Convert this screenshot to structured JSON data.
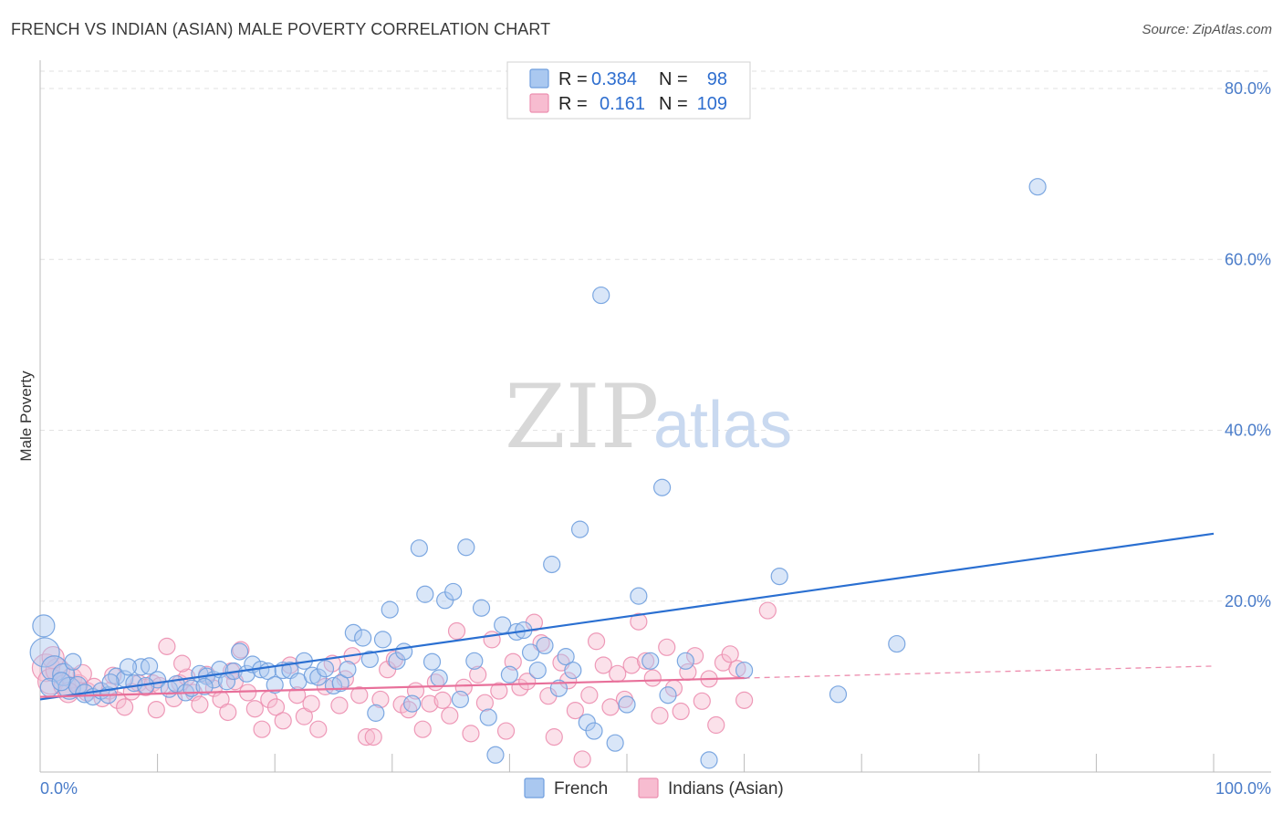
{
  "title": "FRENCH VS INDIAN (ASIAN) MALE POVERTY CORRELATION CHART",
  "source": "Source: ZipAtlas.com",
  "watermark": {
    "part1": "ZIP",
    "part2": "atlas"
  },
  "legend": {
    "rows": [
      {
        "r_label": "R =",
        "r_value": "0.384",
        "n_label": "N =",
        "n_value": "98"
      },
      {
        "r_label": "R =",
        "r_value": "0.161",
        "n_label": "N =",
        "n_value": "109"
      }
    ]
  },
  "bottom_legend": {
    "french": "French",
    "indians": "Indians (Asian)"
  },
  "colors": {
    "french_fill": "#aac8f0",
    "french_stroke": "#6f9ede",
    "french_line": "#2a6fd1",
    "indian_fill": "#f7bcd0",
    "indian_stroke": "#ec8fb0",
    "indian_line": "#e8709a"
  },
  "chart_data": {
    "type": "scatter",
    "title": "FRENCH VS INDIAN (ASIAN) MALE POVERTY CORRELATION CHART",
    "xlabel": "",
    "ylabel": "Male Poverty",
    "xlim": [
      0,
      100
    ],
    "ylim": [
      0,
      85
    ],
    "x_tick_labels": [
      "0.0%",
      "100.0%"
    ],
    "y_ticks": [
      20,
      40,
      60,
      80
    ],
    "y_tick_labels": [
      "20.0%",
      "40.0%",
      "60.0%",
      "80.0%"
    ],
    "grid": "horizontal dashed",
    "legend_position": "top-center",
    "series": [
      {
        "name": "French",
        "r": 0.384,
        "n": 98,
        "trend": {
          "x": [
            0,
            100
          ],
          "y": [
            8.5,
            27.9
          ]
        },
        "points": [
          [
            0.3,
            17.1,
            12
          ],
          [
            0.4,
            14.0,
            16
          ],
          [
            1.2,
            12.1,
            14
          ],
          [
            2.0,
            11.4,
            12
          ],
          [
            2.5,
            9.8,
            12
          ],
          [
            3.2,
            10.1,
            10
          ],
          [
            3.8,
            9.2,
            10
          ],
          [
            4.5,
            8.8,
            9
          ],
          [
            5.2,
            9.5,
            9
          ],
          [
            5.8,
            9.0,
            9
          ],
          [
            6.5,
            11.2,
            9
          ],
          [
            7.2,
            10.9,
            9
          ],
          [
            8.0,
            10.4,
            9
          ],
          [
            8.6,
            12.3,
            9
          ],
          [
            9.3,
            12.4,
            9
          ],
          [
            10.0,
            10.8,
            9
          ],
          [
            11.0,
            9.7,
            9
          ],
          [
            11.6,
            10.3,
            9
          ],
          [
            12.4,
            9.3,
            9
          ],
          [
            12.9,
            9.8,
            9
          ],
          [
            13.6,
            11.5,
            9
          ],
          [
            14.2,
            11.2,
            9
          ],
          [
            14.8,
            10.8,
            9
          ],
          [
            15.3,
            12.0,
            9
          ],
          [
            15.9,
            10.6,
            9
          ],
          [
            16.5,
            11.8,
            9
          ],
          [
            17.0,
            14.1,
            9
          ],
          [
            17.6,
            11.5,
            9
          ],
          [
            18.1,
            12.6,
            9
          ],
          [
            18.8,
            12.0,
            9
          ],
          [
            19.4,
            11.8,
            9
          ],
          [
            20.0,
            10.2,
            9
          ],
          [
            20.7,
            11.9,
            9
          ],
          [
            21.3,
            11.9,
            9
          ],
          [
            22.0,
            10.6,
            9
          ],
          [
            22.5,
            13.0,
            9
          ],
          [
            23.2,
            11.3,
            9
          ],
          [
            23.7,
            11.1,
            9
          ],
          [
            24.3,
            12.1,
            9
          ],
          [
            25.0,
            10.1,
            9
          ],
          [
            25.6,
            10.4,
            9
          ],
          [
            26.2,
            12.0,
            9
          ],
          [
            26.7,
            16.3,
            9
          ],
          [
            27.5,
            15.7,
            9
          ],
          [
            28.1,
            13.2,
            9
          ],
          [
            28.6,
            6.9,
            9
          ],
          [
            29.2,
            15.5,
            9
          ],
          [
            29.8,
            19.0,
            9
          ],
          [
            30.4,
            13.0,
            9
          ],
          [
            31.0,
            14.1,
            9
          ],
          [
            31.7,
            8.0,
            9
          ],
          [
            32.3,
            26.2,
            9
          ],
          [
            32.8,
            20.8,
            9
          ],
          [
            33.4,
            12.9,
            9
          ],
          [
            34.0,
            11.0,
            9
          ],
          [
            34.5,
            20.1,
            9
          ],
          [
            35.2,
            21.1,
            9
          ],
          [
            35.8,
            8.5,
            9
          ],
          [
            36.3,
            26.3,
            9
          ],
          [
            37.0,
            13.0,
            9
          ],
          [
            37.6,
            19.2,
            9
          ],
          [
            38.2,
            6.4,
            9
          ],
          [
            38.8,
            2.0,
            9
          ],
          [
            39.4,
            17.2,
            9
          ],
          [
            40.0,
            11.4,
            9
          ],
          [
            40.6,
            16.4,
            9
          ],
          [
            41.2,
            16.6,
            9
          ],
          [
            41.8,
            14.0,
            9
          ],
          [
            42.4,
            11.9,
            9
          ],
          [
            43.0,
            14.8,
            9
          ],
          [
            43.6,
            24.3,
            9
          ],
          [
            44.2,
            9.8,
            9
          ],
          [
            44.8,
            13.5,
            9
          ],
          [
            45.4,
            11.9,
            9
          ],
          [
            46.0,
            28.4,
            9
          ],
          [
            46.6,
            5.8,
            9
          ],
          [
            47.2,
            4.8,
            9
          ],
          [
            47.8,
            55.8,
            9
          ],
          [
            49.0,
            3.4,
            9
          ],
          [
            50.0,
            7.9,
            9
          ],
          [
            51.0,
            20.6,
            9
          ],
          [
            52.0,
            13.0,
            9
          ],
          [
            53.0,
            33.3,
            9
          ],
          [
            53.5,
            9.0,
            9
          ],
          [
            55.0,
            13.0,
            9
          ],
          [
            57.0,
            1.4,
            9
          ],
          [
            60.0,
            11.9,
            9
          ],
          [
            63.0,
            22.9,
            9
          ],
          [
            68.0,
            9.1,
            9
          ],
          [
            73.0,
            15.0,
            9
          ],
          [
            85.0,
            68.5,
            9
          ],
          [
            0.8,
            9.9,
            10
          ],
          [
            1.8,
            10.6,
            10
          ],
          [
            2.8,
            12.9,
            9
          ],
          [
            6.0,
            10.5,
            9
          ],
          [
            7.5,
            12.3,
            9
          ],
          [
            9.0,
            10.1,
            9
          ],
          [
            14.0,
            10.0,
            9
          ]
        ]
      },
      {
        "name": "Indians (Asian)",
        "r": 0.161,
        "n": 109,
        "trend": {
          "x": [
            0,
            60
          ],
          "y": [
            8.8,
            11.0
          ]
        },
        "trend_dashed": {
          "x": [
            60,
            100
          ],
          "y": [
            11.0,
            12.4
          ]
        },
        "points": [
          [
            0.5,
            12.2,
            15
          ],
          [
            0.9,
            10.6,
            14
          ],
          [
            1.5,
            11.9,
            13
          ],
          [
            2.1,
            10.1,
            12
          ],
          [
            2.7,
            11.0,
            11
          ],
          [
            3.3,
            10.3,
            10
          ],
          [
            4.0,
            9.4,
            10
          ],
          [
            4.6,
            10.0,
            9
          ],
          [
            5.3,
            8.6,
            9
          ],
          [
            5.9,
            9.5,
            9
          ],
          [
            6.6,
            8.4,
            9
          ],
          [
            7.2,
            7.6,
            9
          ],
          [
            7.8,
            9.4,
            9
          ],
          [
            8.4,
            10.4,
            9
          ],
          [
            9.0,
            9.9,
            9
          ],
          [
            9.6,
            10.4,
            9
          ],
          [
            10.2,
            10.1,
            9
          ],
          [
            10.8,
            14.7,
            9
          ],
          [
            11.4,
            8.6,
            9
          ],
          [
            11.9,
            10.4,
            9
          ],
          [
            12.5,
            11.1,
            9
          ],
          [
            13.1,
            9.3,
            9
          ],
          [
            13.6,
            7.9,
            9
          ],
          [
            14.2,
            11.4,
            9
          ],
          [
            14.8,
            9.8,
            9
          ],
          [
            15.4,
            8.5,
            9
          ],
          [
            16.0,
            7.0,
            9
          ],
          [
            16.6,
            10.6,
            9
          ],
          [
            17.1,
            14.3,
            9
          ],
          [
            17.7,
            9.3,
            9
          ],
          [
            18.3,
            7.4,
            9
          ],
          [
            18.9,
            5.0,
            9
          ],
          [
            19.5,
            8.5,
            9
          ],
          [
            20.1,
            7.6,
            9
          ],
          [
            20.7,
            6.0,
            9
          ],
          [
            21.3,
            12.5,
            9
          ],
          [
            21.9,
            9.0,
            9
          ],
          [
            22.5,
            6.5,
            9
          ],
          [
            23.1,
            8.0,
            9
          ],
          [
            23.7,
            5.0,
            9
          ],
          [
            24.3,
            10.0,
            9
          ],
          [
            24.9,
            12.7,
            9
          ],
          [
            25.5,
            7.8,
            9
          ],
          [
            26.0,
            10.9,
            9
          ],
          [
            26.6,
            13.6,
            9
          ],
          [
            27.2,
            9.0,
            9
          ],
          [
            27.8,
            4.1,
            9
          ],
          [
            28.4,
            4.1,
            9
          ],
          [
            29.0,
            8.5,
            9
          ],
          [
            29.6,
            12.0,
            9
          ],
          [
            30.2,
            13.2,
            9
          ],
          [
            30.8,
            7.9,
            9
          ],
          [
            31.4,
            7.3,
            9
          ],
          [
            32.0,
            9.5,
            9
          ],
          [
            32.6,
            5.0,
            9
          ],
          [
            33.2,
            8.0,
            9
          ],
          [
            33.7,
            10.5,
            9
          ],
          [
            34.3,
            8.4,
            9
          ],
          [
            34.9,
            6.6,
            9
          ],
          [
            35.5,
            16.5,
            9
          ],
          [
            36.1,
            9.9,
            9
          ],
          [
            36.7,
            4.5,
            9
          ],
          [
            37.3,
            11.4,
            9
          ],
          [
            37.9,
            8.1,
            9
          ],
          [
            38.5,
            15.5,
            9
          ],
          [
            39.1,
            9.5,
            9
          ],
          [
            39.7,
            4.8,
            9
          ],
          [
            40.3,
            12.9,
            9
          ],
          [
            40.9,
            9.9,
            9
          ],
          [
            41.5,
            10.6,
            9
          ],
          [
            42.1,
            17.5,
            9
          ],
          [
            42.7,
            15.1,
            9
          ],
          [
            43.3,
            8.9,
            9
          ],
          [
            43.8,
            4.1,
            9
          ],
          [
            44.4,
            12.8,
            9
          ],
          [
            45.0,
            10.7,
            9
          ],
          [
            45.6,
            7.2,
            9
          ],
          [
            46.2,
            1.5,
            9
          ],
          [
            46.8,
            9.0,
            9
          ],
          [
            47.4,
            15.3,
            9
          ],
          [
            48.0,
            12.5,
            9
          ],
          [
            48.6,
            7.6,
            9
          ],
          [
            49.2,
            11.5,
            9
          ],
          [
            49.8,
            8.5,
            9
          ],
          [
            50.4,
            12.5,
            9
          ],
          [
            51.0,
            17.6,
            9
          ],
          [
            51.6,
            13.0,
            9
          ],
          [
            52.2,
            11.0,
            9
          ],
          [
            52.8,
            6.6,
            9
          ],
          [
            53.4,
            14.6,
            9
          ],
          [
            54.0,
            9.8,
            9
          ],
          [
            54.6,
            7.1,
            9
          ],
          [
            55.2,
            11.7,
            9
          ],
          [
            55.8,
            13.6,
            9
          ],
          [
            56.4,
            8.3,
            9
          ],
          [
            57.0,
            10.9,
            9
          ],
          [
            57.6,
            5.5,
            9
          ],
          [
            58.2,
            12.8,
            9
          ],
          [
            58.8,
            13.8,
            9
          ],
          [
            59.4,
            12.1,
            9
          ],
          [
            60.0,
            8.4,
            9
          ],
          [
            62.0,
            18.9,
            9
          ],
          [
            1.1,
            13.4,
            12
          ],
          [
            2.4,
            9.3,
            11
          ],
          [
            3.6,
            11.5,
            10
          ],
          [
            6.2,
            11.3,
            9
          ],
          [
            9.9,
            7.3,
            9
          ],
          [
            12.1,
            12.7,
            9
          ],
          [
            16.3,
            11.8,
            9
          ]
        ]
      }
    ]
  }
}
